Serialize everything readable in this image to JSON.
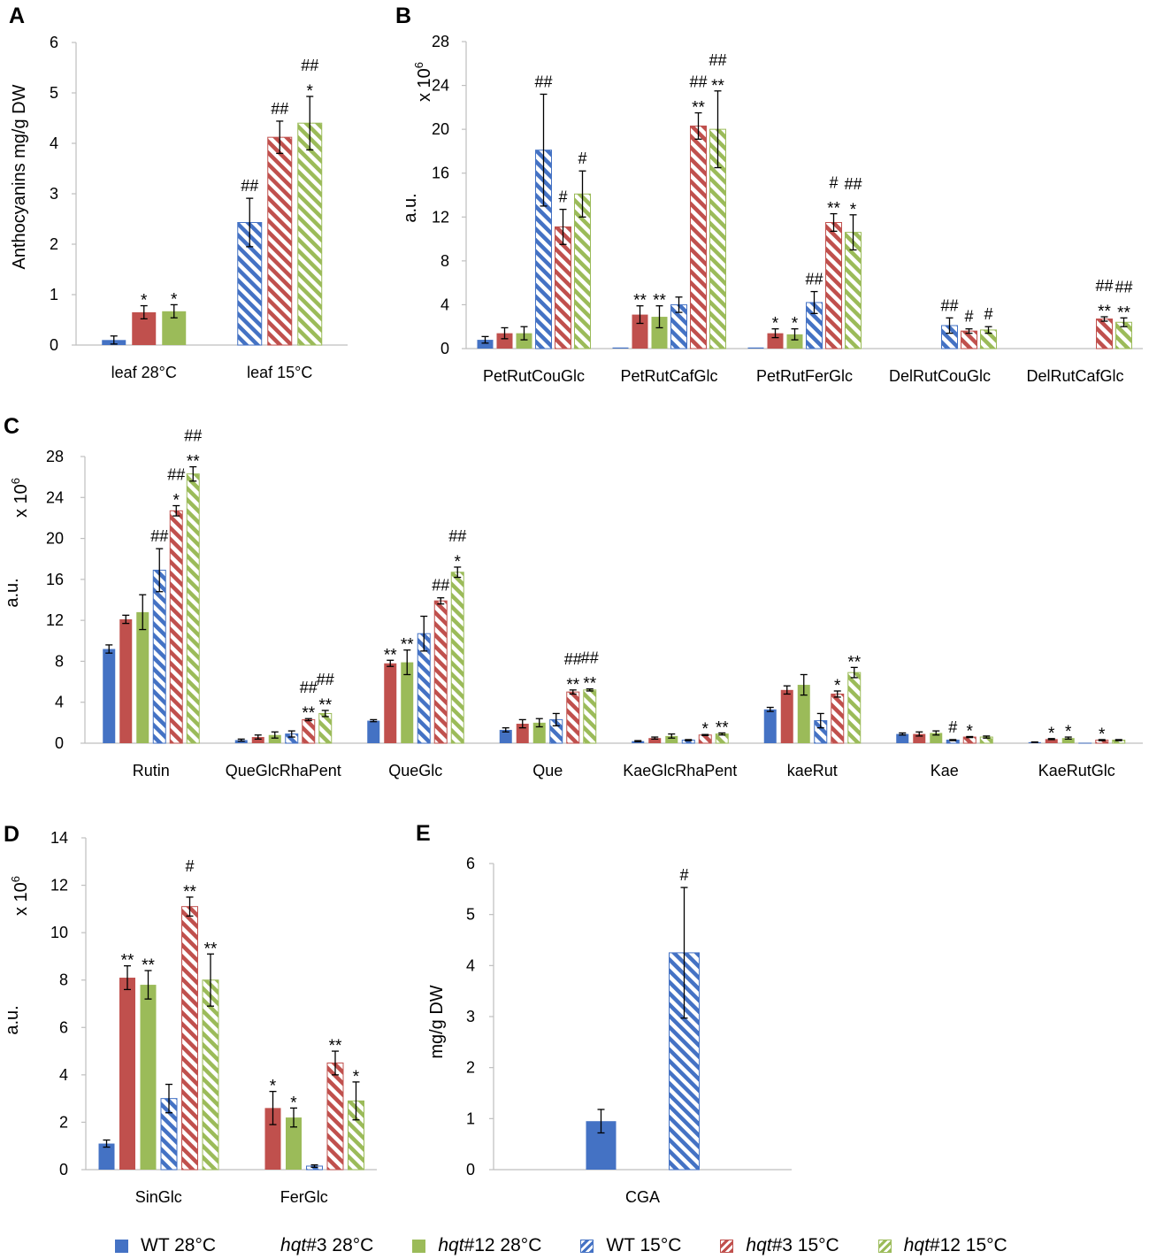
{
  "colors": {
    "wt": "#4472C4",
    "hqt3": "#C0504D",
    "hqt12": "#9BBB59"
  },
  "legend": [
    {
      "key": "wt28",
      "pre": "",
      "italic": "",
      "post": "WT 28°C",
      "color": "#4472C4",
      "hatched": false
    },
    {
      "key": "hqt3_28",
      "pre": "",
      "italic": "hqt",
      "post": "#3 28°C",
      "color": "#C0504D",
      "hatched": false
    },
    {
      "key": "hqt12_28",
      "pre": "",
      "italic": "hqt",
      "post": "#12 28°C",
      "color": "#9BBB59",
      "hatched": false
    },
    {
      "key": "wt15",
      "pre": "",
      "italic": "",
      "post": "WT 15°C",
      "color": "#4472C4",
      "hatched": true
    },
    {
      "key": "hqt3_15",
      "pre": "",
      "italic": "hqt",
      "post": "#3 15°C",
      "color": "#C0504D",
      "hatched": true
    },
    {
      "key": "hqt12_15",
      "pre": "",
      "italic": "hqt",
      "post": "#12 15°C",
      "color": "#9BBB59",
      "hatched": true
    }
  ],
  "chart_data": [
    {
      "panel": "A",
      "type": "bar",
      "ylabel": "Anthocyanins mg/g DW",
      "scale_label": "",
      "ylim": [
        0,
        6
      ],
      "yticks": [
        0,
        1,
        2,
        3,
        4,
        5,
        6
      ],
      "categories": [
        "leaf 28°C",
        "leaf 15°C"
      ],
      "bars": [
        [
          {
            "s": "wt28",
            "v": 0.1,
            "e": 0.08,
            "m": [
              "",
              ""
            ]
          },
          {
            "s": "hqt3_28",
            "v": 0.65,
            "e": 0.13,
            "m": [
              "",
              "*"
            ]
          },
          {
            "s": "hqt12_28",
            "v": 0.67,
            "e": 0.13,
            "m": [
              "",
              "*"
            ]
          }
        ],
        [
          {
            "s": "wt15",
            "v": 2.43,
            "e": 0.48,
            "m": [
              "##",
              ""
            ]
          },
          {
            "s": "hqt3_15",
            "v": 4.12,
            "e": 0.32,
            "m": [
              "##",
              ""
            ]
          },
          {
            "s": "hqt12_15",
            "v": 4.4,
            "e": 0.53,
            "m": [
              "##",
              "*"
            ]
          }
        ]
      ]
    },
    {
      "panel": "B",
      "type": "bar",
      "ylabel": "a.u.",
      "scale_label": "x 10",
      "scale_exp": "6",
      "ylim": [
        0,
        28
      ],
      "yticks": [
        0,
        4,
        8,
        12,
        16,
        20,
        24,
        28
      ],
      "categories": [
        "PetRutCouGlc",
        "PetRutCafGlc",
        "PetRutFerGlc",
        "DelRutCouGlc",
        "DelRutCafGlc"
      ],
      "bars": [
        [
          {
            "s": "wt28",
            "v": 0.8,
            "e": 0.3,
            "m": [
              "",
              ""
            ]
          },
          {
            "s": "hqt3_28",
            "v": 1.4,
            "e": 0.5,
            "m": [
              "",
              ""
            ]
          },
          {
            "s": "hqt12_28",
            "v": 1.4,
            "e": 0.6,
            "m": [
              "",
              ""
            ]
          },
          {
            "s": "wt15",
            "v": 18.1,
            "e": 5.1,
            "m": [
              "##",
              ""
            ]
          },
          {
            "s": "hqt3_15",
            "v": 11.1,
            "e": 1.6,
            "m": [
              "#",
              ""
            ]
          },
          {
            "s": "hqt12_15",
            "v": 14.1,
            "e": 2.1,
            "m": [
              "#",
              ""
            ]
          }
        ],
        [
          {
            "s": "wt28",
            "v": 0.1,
            "e": 0,
            "m": [
              "",
              ""
            ]
          },
          {
            "s": "hqt3_28",
            "v": 3.1,
            "e": 0.8,
            "m": [
              "",
              "**"
            ]
          },
          {
            "s": "hqt12_28",
            "v": 2.9,
            "e": 1.0,
            "m": [
              "",
              "**"
            ]
          },
          {
            "s": "wt15",
            "v": 4.0,
            "e": 0.7,
            "m": [
              "",
              ""
            ]
          },
          {
            "s": "hqt3_15",
            "v": 20.3,
            "e": 1.2,
            "m": [
              "##",
              "**"
            ]
          },
          {
            "s": "hqt12_15",
            "v": 20.0,
            "e": 3.5,
            "m": [
              "##",
              "**"
            ]
          }
        ],
        [
          {
            "s": "wt28",
            "v": 0.1,
            "e": 0,
            "m": [
              "",
              ""
            ]
          },
          {
            "s": "hqt3_28",
            "v": 1.4,
            "e": 0.4,
            "m": [
              "",
              "*"
            ]
          },
          {
            "s": "hqt12_28",
            "v": 1.3,
            "e": 0.5,
            "m": [
              "",
              "*"
            ]
          },
          {
            "s": "wt15",
            "v": 4.2,
            "e": 1.0,
            "m": [
              "##",
              ""
            ]
          },
          {
            "s": "hqt3_15",
            "v": 11.5,
            "e": 0.8,
            "m": [
              "#",
              "**"
            ]
          },
          {
            "s": "hqt12_15",
            "v": 10.6,
            "e": 1.6,
            "m": [
              "##",
              "*"
            ]
          }
        ],
        [
          {
            "s": "wt15",
            "v": 2.1,
            "e": 0.7,
            "m": [
              "##",
              ""
            ]
          },
          {
            "s": "hqt3_15",
            "v": 1.6,
            "e": 0.2,
            "m": [
              "#",
              ""
            ]
          },
          {
            "s": "hqt12_15",
            "v": 1.7,
            "e": 0.3,
            "m": [
              "#",
              ""
            ]
          }
        ],
        [
          {
            "s": "hqt3_15",
            "v": 2.7,
            "e": 0.2,
            "m": [
              "##",
              "**"
            ]
          },
          {
            "s": "hqt12_15",
            "v": 2.4,
            "e": 0.4,
            "m": [
              "##",
              "**"
            ]
          }
        ]
      ]
    },
    {
      "panel": "C",
      "type": "bar",
      "ylabel": "a.u.",
      "scale_label": "x 10",
      "scale_exp": "6",
      "ylim": [
        0,
        28
      ],
      "yticks": [
        0,
        4,
        8,
        12,
        16,
        20,
        24,
        28
      ],
      "categories": [
        "Rutin",
        "QueGlcRhaPent",
        "QueGlc",
        "Que",
        "KaeGlcRhaPent",
        "kaeRut",
        "Kae",
        "KaeRutGlc"
      ],
      "bars": [
        [
          {
            "s": "wt28",
            "v": 9.2,
            "e": 0.4,
            "m": [
              "",
              ""
            ]
          },
          {
            "s": "hqt3_28",
            "v": 12.1,
            "e": 0.4,
            "m": [
              "",
              ""
            ]
          },
          {
            "s": "hqt12_28",
            "v": 12.8,
            "e": 1.7,
            "m": [
              "",
              ""
            ]
          },
          {
            "s": "wt15",
            "v": 16.9,
            "e": 2.1,
            "m": [
              "##",
              ""
            ]
          },
          {
            "s": "hqt3_15",
            "v": 22.7,
            "e": 0.5,
            "m": [
              "##",
              "*"
            ]
          },
          {
            "s": "hqt12_15",
            "v": 26.3,
            "e": 0.7,
            "m": [
              "##",
              "**"
            ]
          }
        ],
        [
          {
            "s": "wt28",
            "v": 0.3,
            "e": 0.1,
            "m": [
              "",
              ""
            ]
          },
          {
            "s": "hqt3_28",
            "v": 0.6,
            "e": 0.2,
            "m": [
              "",
              ""
            ]
          },
          {
            "s": "hqt12_28",
            "v": 0.8,
            "e": 0.3,
            "m": [
              "",
              ""
            ]
          },
          {
            "s": "wt15",
            "v": 0.9,
            "e": 0.3,
            "m": [
              "",
              ""
            ]
          },
          {
            "s": "hqt3_15",
            "v": 2.3,
            "e": 0.1,
            "m": [
              "##",
              "**"
            ]
          },
          {
            "s": "hqt12_15",
            "v": 2.9,
            "e": 0.3,
            "m": [
              "##",
              "**"
            ]
          }
        ],
        [
          {
            "s": "wt28",
            "v": 2.2,
            "e": 0.1,
            "m": [
              "",
              ""
            ]
          },
          {
            "s": "hqt3_28",
            "v": 7.8,
            "e": 0.3,
            "m": [
              "",
              "**"
            ]
          },
          {
            "s": "hqt12_28",
            "v": 7.9,
            "e": 1.2,
            "m": [
              "",
              "**"
            ]
          },
          {
            "s": "wt15",
            "v": 10.7,
            "e": 1.7,
            "m": [
              "",
              ""
            ]
          },
          {
            "s": "hqt3_15",
            "v": 13.9,
            "e": 0.3,
            "m": [
              "##",
              ""
            ]
          },
          {
            "s": "hqt12_15",
            "v": 16.7,
            "e": 0.5,
            "m": [
              "##",
              "*"
            ]
          }
        ],
        [
          {
            "s": "wt28",
            "v": 1.3,
            "e": 0.2,
            "m": [
              "",
              ""
            ]
          },
          {
            "s": "hqt3_28",
            "v": 1.9,
            "e": 0.4,
            "m": [
              "",
              ""
            ]
          },
          {
            "s": "hqt12_28",
            "v": 2.0,
            "e": 0.4,
            "m": [
              "",
              ""
            ]
          },
          {
            "s": "wt15",
            "v": 2.3,
            "e": 0.6,
            "m": [
              "",
              ""
            ]
          },
          {
            "s": "hqt3_15",
            "v": 5.0,
            "e": 0.2,
            "m": [
              "##",
              "**"
            ]
          },
          {
            "s": "hqt12_15",
            "v": 5.2,
            "e": 0.1,
            "m": [
              "##",
              "**"
            ]
          }
        ],
        [
          {
            "s": "wt28",
            "v": 0.2,
            "e": 0.05,
            "m": [
              "",
              ""
            ]
          },
          {
            "s": "hqt3_28",
            "v": 0.5,
            "e": 0.1,
            "m": [
              "",
              ""
            ]
          },
          {
            "s": "hqt12_28",
            "v": 0.7,
            "e": 0.2,
            "m": [
              "",
              ""
            ]
          },
          {
            "s": "wt15",
            "v": 0.3,
            "e": 0.05,
            "m": [
              "",
              ""
            ]
          },
          {
            "s": "hqt3_15",
            "v": 0.8,
            "e": 0.05,
            "m": [
              "",
              "*"
            ]
          },
          {
            "s": "hqt12_15",
            "v": 0.9,
            "e": 0.1,
            "m": [
              "",
              "**"
            ]
          }
        ],
        [
          {
            "s": "wt28",
            "v": 3.3,
            "e": 0.2,
            "m": [
              "",
              ""
            ]
          },
          {
            "s": "hqt3_28",
            "v": 5.2,
            "e": 0.4,
            "m": [
              "",
              ""
            ]
          },
          {
            "s": "hqt12_28",
            "v": 5.7,
            "e": 1.0,
            "m": [
              "",
              ""
            ]
          },
          {
            "s": "wt15",
            "v": 2.2,
            "e": 0.7,
            "m": [
              "",
              ""
            ]
          },
          {
            "s": "hqt3_15",
            "v": 4.8,
            "e": 0.3,
            "m": [
              "",
              "*"
            ]
          },
          {
            "s": "hqt12_15",
            "v": 6.9,
            "e": 0.5,
            "m": [
              "",
              "**"
            ]
          }
        ],
        [
          {
            "s": "wt28",
            "v": 0.9,
            "e": 0.1,
            "m": [
              "",
              ""
            ]
          },
          {
            "s": "hqt3_28",
            "v": 0.9,
            "e": 0.2,
            "m": [
              "",
              ""
            ]
          },
          {
            "s": "hqt12_28",
            "v": 1.0,
            "e": 0.2,
            "m": [
              "",
              ""
            ]
          },
          {
            "s": "wt15",
            "v": 0.3,
            "e": 0.05,
            "m": [
              "#",
              ""
            ]
          },
          {
            "s": "hqt3_15",
            "v": 0.6,
            "e": 0.05,
            "m": [
              "",
              "*"
            ]
          },
          {
            "s": "hqt12_15",
            "v": 0.6,
            "e": 0.1,
            "m": [
              "",
              ""
            ]
          }
        ],
        [
          {
            "s": "wt28",
            "v": 0.1,
            "e": 0.02,
            "m": [
              "",
              ""
            ]
          },
          {
            "s": "hqt3_28",
            "v": 0.4,
            "e": 0.05,
            "m": [
              "",
              "*"
            ]
          },
          {
            "s": "hqt12_28",
            "v": 0.5,
            "e": 0.1,
            "m": [
              "",
              "*"
            ]
          },
          {
            "s": "wt15",
            "v": 0.0,
            "e": 0,
            "m": [
              "",
              ""
            ]
          },
          {
            "s": "hqt3_15",
            "v": 0.3,
            "e": 0.05,
            "m": [
              "",
              "*"
            ]
          },
          {
            "s": "hqt12_15",
            "v": 0.3,
            "e": 0.05,
            "m": [
              "",
              ""
            ]
          }
        ]
      ]
    },
    {
      "panel": "D",
      "type": "bar",
      "ylabel": "a.u.",
      "scale_label": "x 10",
      "scale_exp": "6",
      "ylim": [
        0,
        14
      ],
      "yticks": [
        0,
        2,
        4,
        6,
        8,
        10,
        12,
        14
      ],
      "categories": [
        "SinGlc",
        "FerGlc"
      ],
      "bars": [
        [
          {
            "s": "wt28",
            "v": 1.1,
            "e": 0.15,
            "m": [
              "",
              ""
            ]
          },
          {
            "s": "hqt3_28",
            "v": 8.1,
            "e": 0.5,
            "m": [
              "",
              "**"
            ]
          },
          {
            "s": "hqt12_28",
            "v": 7.8,
            "e": 0.6,
            "m": [
              "",
              "**"
            ]
          },
          {
            "s": "wt15",
            "v": 3.0,
            "e": 0.6,
            "m": [
              "",
              ""
            ]
          },
          {
            "s": "hqt3_15",
            "v": 11.1,
            "e": 0.4,
            "m": [
              "#",
              "**"
            ]
          },
          {
            "s": "hqt12_15",
            "v": 8.0,
            "e": 1.1,
            "m": [
              "",
              "**"
            ]
          }
        ],
        [
          {
            "s": "wt28",
            "v": 0.0,
            "e": 0,
            "m": [
              "",
              ""
            ]
          },
          {
            "s": "hqt3_28",
            "v": 2.6,
            "e": 0.7,
            "m": [
              "",
              "*"
            ]
          },
          {
            "s": "hqt12_28",
            "v": 2.2,
            "e": 0.4,
            "m": [
              "",
              "*"
            ]
          },
          {
            "s": "wt15",
            "v": 0.15,
            "e": 0.05,
            "m": [
              "",
              ""
            ]
          },
          {
            "s": "hqt3_15",
            "v": 4.5,
            "e": 0.5,
            "m": [
              "",
              "**"
            ]
          },
          {
            "s": "hqt12_15",
            "v": 2.9,
            "e": 0.8,
            "m": [
              "",
              "*"
            ]
          }
        ]
      ]
    },
    {
      "panel": "E",
      "type": "bar",
      "ylabel": "mg/g DW",
      "scale_label": "",
      "ylim": [
        0,
        6
      ],
      "yticks": [
        0,
        1,
        2,
        3,
        4,
        5,
        6
      ],
      "categories": [
        "CGA"
      ],
      "bars": [
        [
          {
            "s": "wt28",
            "v": 0.95,
            "e": 0.23,
            "m": [
              "",
              ""
            ]
          },
          {
            "s": "wt15",
            "v": 4.25,
            "e": 1.28,
            "m": [
              "#",
              ""
            ]
          }
        ]
      ]
    }
  ]
}
